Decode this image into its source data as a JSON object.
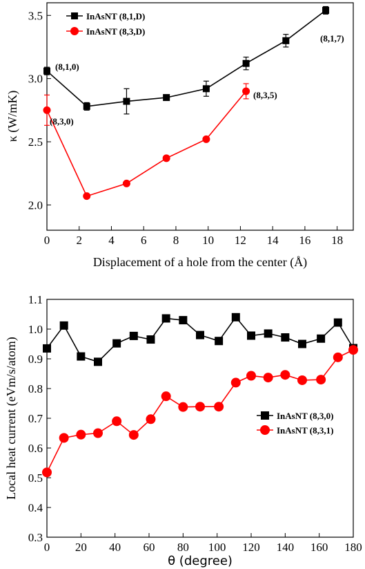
{
  "chart_data": [
    {
      "type": "line",
      "xlabel": "Displacement of a hole from the center (Å)",
      "ylabel": "κ (W/mK)",
      "xlim": [
        0,
        19
      ],
      "ylim": [
        1.8,
        3.6
      ],
      "xticks": [
        0,
        2,
        4,
        6,
        8,
        10,
        12,
        14,
        16,
        18
      ],
      "yticks": [
        2.0,
        2.5,
        3.0,
        3.5
      ],
      "ytick_labels": [
        "2.0",
        "2.5",
        "3.0",
        "3.5"
      ],
      "legend_position": "top-left",
      "series": [
        {
          "name": "InAsNT (8,1,D)",
          "color": "#000000",
          "marker": "square",
          "x": [
            0,
            2.47,
            4.94,
            7.41,
            9.88,
            12.35,
            14.82,
            17.29
          ],
          "y": [
            3.06,
            2.78,
            2.82,
            2.85,
            2.92,
            3.12,
            3.3,
            3.54
          ],
          "err": [
            0.03,
            0.03,
            0.1,
            0.02,
            0.06,
            0.05,
            0.05,
            0.03
          ]
        },
        {
          "name": "InAsNT (8,3,D)",
          "color": "#ff0000",
          "marker": "circle",
          "x": [
            0,
            2.47,
            4.94,
            7.41,
            9.88,
            12.35
          ],
          "y": [
            2.75,
            2.07,
            2.17,
            2.37,
            2.52,
            2.9
          ],
          "err": [
            0.12,
            0.0,
            0.0,
            0.0,
            0.0,
            0.06
          ]
        }
      ],
      "annotations": [
        "(8,1,0)",
        "(8,3,0)",
        "(8,3,5)",
        "(8,1,7)"
      ]
    },
    {
      "type": "line",
      "xlabel": "θ (degree)",
      "ylabel": "Local heat current (eVm/s/atom)",
      "xlim": [
        0,
        180
      ],
      "ylim": [
        0.3,
        1.1
      ],
      "xticks": [
        0,
        20,
        40,
        60,
        80,
        100,
        120,
        140,
        160,
        180
      ],
      "yticks": [
        0.3,
        0.4,
        0.5,
        0.6,
        0.7,
        0.8,
        0.9,
        1.0,
        1.1
      ],
      "ytick_labels": [
        "0.3",
        "0.4",
        "0.5",
        "0.6",
        "0.7",
        "0.8",
        "0.9",
        "1.0",
        "1.1"
      ],
      "legend_position": "center-right",
      "series": [
        {
          "name": "InAsNT (8,3,0)",
          "color": "#000000",
          "marker": "square",
          "x": [
            0,
            10,
            20,
            30,
            41,
            51,
            61,
            70,
            80,
            90,
            101,
            111,
            120,
            130,
            140,
            150,
            161,
            171,
            180
          ],
          "y": [
            0.935,
            1.012,
            0.908,
            0.89,
            0.952,
            0.977,
            0.965,
            1.036,
            1.03,
            0.98,
            0.96,
            1.04,
            0.978,
            0.985,
            0.972,
            0.95,
            0.968,
            1.022,
            0.936
          ]
        },
        {
          "name": "InAsNT (8,3,1)",
          "color": "#ff0000",
          "marker": "circle",
          "x": [
            0,
            10,
            20,
            30,
            41,
            51,
            61,
            70,
            80,
            90,
            101,
            111,
            120,
            130,
            140,
            150,
            161,
            171,
            180
          ],
          "y": [
            0.518,
            0.634,
            0.645,
            0.65,
            0.69,
            0.644,
            0.697,
            0.774,
            0.738,
            0.739,
            0.739,
            0.82,
            0.843,
            0.837,
            0.846,
            0.828,
            0.83,
            0.905,
            0.93
          ]
        }
      ]
    }
  ]
}
